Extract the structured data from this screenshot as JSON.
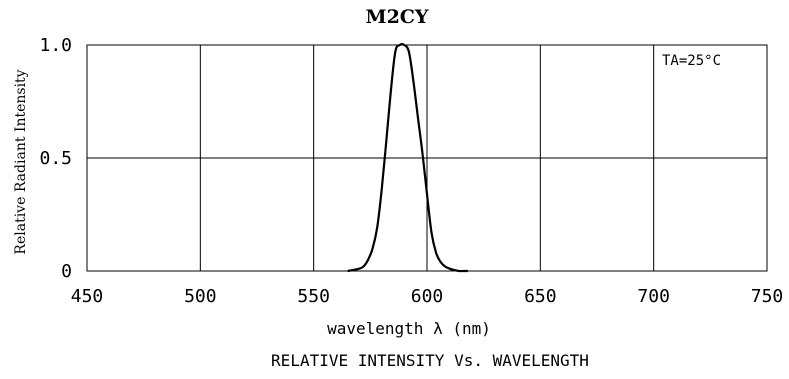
{
  "chart_data": {
    "type": "line",
    "title": "M2CY",
    "xlabel": "wavelength λ (nm)",
    "ylabel": "Relative Radiant Intensity",
    "caption": "RELATIVE INTENSITY Vs. WAVELENGTH",
    "annotation": "TA=25°C",
    "xlim": [
      450,
      750
    ],
    "ylim": [
      0,
      1.0
    ],
    "x_ticks": [
      450,
      500,
      550,
      600,
      650,
      700,
      750
    ],
    "y_ticks": [
      0,
      0.5,
      1.0
    ],
    "x_tick_labels": [
      "450",
      "500",
      "550",
      "600",
      "650",
      "700",
      "750"
    ],
    "y_tick_labels": [
      "0",
      "0.5",
      "1.0"
    ],
    "grid": true,
    "series": [
      {
        "x": [
          565,
          570,
          572,
          574,
          576,
          578,
          580,
          582,
          584,
          586,
          588,
          590,
          592,
          594,
          596,
          598,
          600,
          602,
          604,
          606,
          608,
          610,
          612,
          614,
          616,
          618
        ],
        "y": [
          0.0,
          0.01,
          0.02,
          0.05,
          0.1,
          0.19,
          0.36,
          0.57,
          0.79,
          0.97,
          1.0,
          1.0,
          0.97,
          0.84,
          0.68,
          0.52,
          0.34,
          0.17,
          0.08,
          0.04,
          0.02,
          0.01,
          0.005,
          0.0,
          0.0,
          0.0
        ]
      }
    ]
  }
}
